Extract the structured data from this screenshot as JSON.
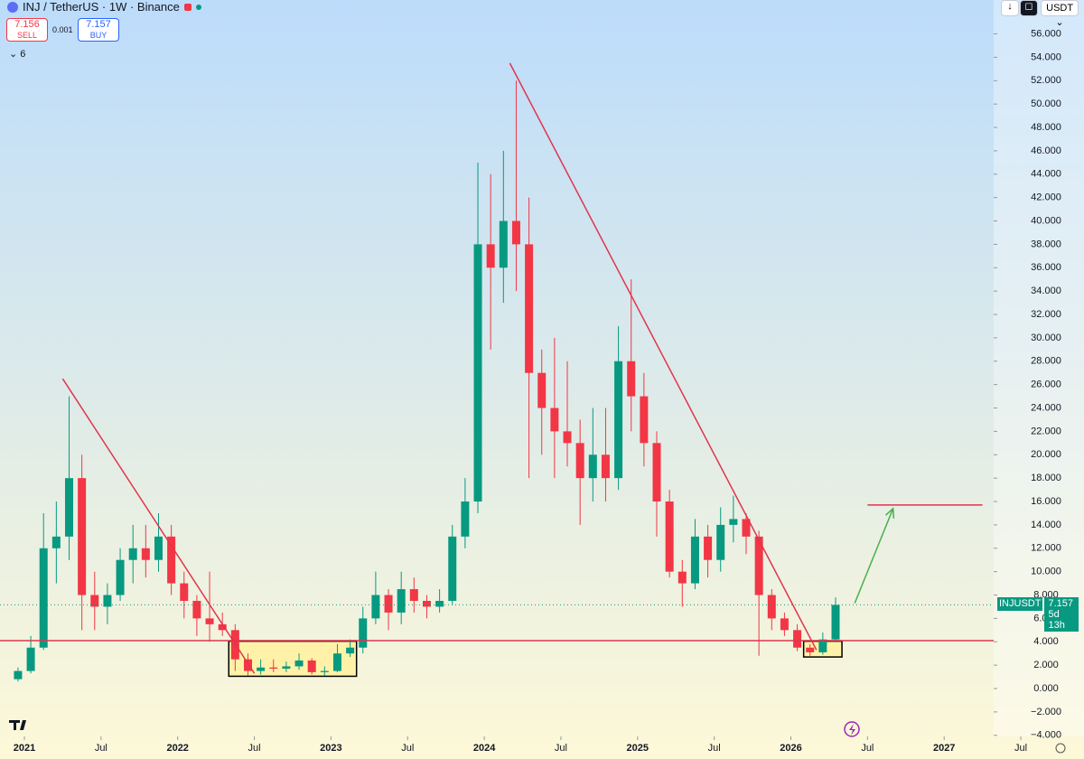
{
  "toolbar": {
    "symbol": "INJ / TetherUS · 1W · Binance",
    "sell_price": 7.156,
    "sell_label": "SELL",
    "spread": 0.001,
    "buy_price": 7.157,
    "buy_label": "BUY",
    "indicators": 6,
    "currency": "USDT"
  },
  "chart_data": {
    "type": "candlestick",
    "x": [
      "2020-12",
      "2021-01",
      "2021-02",
      "2021-03",
      "2021-04",
      "2021-05",
      "2021-06",
      "2021-07",
      "2021-08",
      "2021-09",
      "2021-10",
      "2021-11",
      "2021-12",
      "2022-01",
      "2022-02",
      "2022-03",
      "2022-04",
      "2022-05",
      "2022-06",
      "2022-07",
      "2022-08",
      "2022-09",
      "2022-10",
      "2022-11",
      "2022-12",
      "2023-01",
      "2023-02",
      "2023-03",
      "2023-04",
      "2023-05",
      "2023-06",
      "2023-07",
      "2023-08",
      "2023-09",
      "2023-10",
      "2023-11",
      "2023-12",
      "2024-01",
      "2024-02",
      "2024-03",
      "2024-04",
      "2024-05",
      "2024-06",
      "2024-07",
      "2024-08",
      "2024-09",
      "2024-10",
      "2024-11",
      "2024-12",
      "2025-01",
      "2025-02",
      "2025-03",
      "2025-04",
      "2025-05",
      "2025-06",
      "2025-07",
      "2025-08",
      "2025-09",
      "2025-10",
      "2025-11",
      "2025-12",
      "2026-01",
      "2026-02",
      "2026-03",
      "2026-04"
    ],
    "open": [
      0.8,
      1.5,
      3.5,
      12,
      13,
      18,
      8,
      7,
      8,
      11,
      12,
      11,
      13,
      9,
      7.5,
      6,
      5.5,
      5,
      2.5,
      1.5,
      1.8,
      1.7,
      1.9,
      2.4,
      1.4,
      1.5,
      3,
      3.5,
      6,
      8,
      6.5,
      8.5,
      7.5,
      7,
      7.5,
      13,
      16,
      38,
      36,
      40,
      38,
      27,
      24,
      22,
      21,
      18,
      20,
      18,
      28,
      25,
      21,
      16,
      10,
      9,
      13,
      11,
      14,
      14.5,
      13,
      8,
      6,
      5,
      3.5,
      3.1,
      4.2
    ],
    "high": [
      1.8,
      4.5,
      15,
      16,
      25,
      20,
      10,
      9,
      12,
      14,
      14,
      15,
      14,
      10,
      8,
      10,
      6.5,
      5.5,
      3,
      2.5,
      2.5,
      2.3,
      3,
      2.6,
      1.9,
      3.8,
      4.2,
      7,
      10,
      8.5,
      10,
      9.5,
      8,
      8.5,
      14,
      18,
      45,
      44,
      46,
      52,
      42,
      29,
      30,
      28,
      23,
      24,
      24,
      31,
      35,
      27,
      22,
      17,
      11,
      14.5,
      14,
      15.5,
      16.5,
      15,
      13.5,
      8.5,
      6.5,
      5.5,
      3.8,
      4.8,
      7.8
    ],
    "low": [
      0.6,
      1.3,
      3.3,
      9,
      11,
      5,
      5,
      5.5,
      7.5,
      9,
      9.5,
      10,
      8,
      6,
      4.5,
      4,
      4.5,
      1.5,
      1.1,
      1.2,
      1.4,
      1.4,
      1.6,
      1.2,
      1.1,
      1.4,
      2.7,
      3,
      5.5,
      5,
      5.5,
      6.5,
      6,
      6.5,
      7.2,
      12,
      15,
      29,
      33,
      34,
      18,
      20,
      18,
      19,
      14,
      16,
      16,
      17,
      22,
      19,
      13,
      9.5,
      7,
      8.5,
      9.5,
      10,
      12.5,
      11.5,
      2.8,
      5,
      4.5,
      3.2,
      2.8,
      2.9,
      4.1
    ],
    "close": [
      1.5,
      3.5,
      12,
      13,
      18,
      8,
      7,
      8,
      11,
      12,
      11,
      13,
      9,
      7.5,
      6,
      5.5,
      5,
      2.5,
      1.5,
      1.8,
      1.7,
      1.9,
      2.4,
      1.4,
      1.5,
      3,
      3.5,
      6,
      8,
      6.5,
      8.5,
      7.5,
      7,
      7.5,
      13,
      16,
      38,
      36,
      40,
      38,
      27,
      24,
      22,
      21,
      18,
      20,
      18,
      28,
      25,
      21,
      16,
      10,
      9,
      13,
      11,
      14,
      14.5,
      13,
      8,
      6,
      5,
      3.5,
      3.1,
      4.2,
      7.157
    ],
    "colors": {
      "up": "#089981",
      "down": "#f23645",
      "drawing": "#e0354d",
      "box": "#fff2a8",
      "arrow": "#4caf50"
    },
    "ylim": [
      -5.1,
      58.9
    ],
    "yticks": [
      {
        "value": -4,
        "label": "−4.000"
      },
      {
        "value": -2,
        "label": "−2.000"
      },
      {
        "value": 0,
        "label": "0.000"
      },
      {
        "value": 2,
        "label": "2.000"
      },
      {
        "value": 4,
        "label": "4.000"
      },
      {
        "value": 6,
        "label": "6.000"
      },
      {
        "value": 8,
        "label": "8.000"
      },
      {
        "value": 10,
        "label": "10.000"
      },
      {
        "value": 12,
        "label": "12.000"
      },
      {
        "value": 14,
        "label": "14.000"
      },
      {
        "value": 16,
        "label": "16.000"
      },
      {
        "value": 18,
        "label": "18.000"
      },
      {
        "value": 20,
        "label": "20.000"
      },
      {
        "value": 22,
        "label": "22.000"
      },
      {
        "value": 24,
        "label": "24.000"
      },
      {
        "value": 26,
        "label": "26.000"
      },
      {
        "value": 28,
        "label": "28.000"
      },
      {
        "value": 30,
        "label": "30.000"
      },
      {
        "value": 32,
        "label": "32.000"
      },
      {
        "value": 34,
        "label": "34.000"
      },
      {
        "value": 36,
        "label": "36.000"
      },
      {
        "value": 38,
        "label": "38.000"
      },
      {
        "value": 40,
        "label": "40.000"
      },
      {
        "value": 42,
        "label": "42.000"
      },
      {
        "value": 44,
        "label": "44.000"
      },
      {
        "value": 46,
        "label": "46.000"
      },
      {
        "value": 48,
        "label": "48.000"
      },
      {
        "value": 50,
        "label": "50.000"
      },
      {
        "value": 52,
        "label": "52.000"
      },
      {
        "value": 54,
        "label": "54.000"
      },
      {
        "value": 56,
        "label": "56.000"
      }
    ],
    "xticks": [
      {
        "value": "2021-01",
        "label": "2021"
      },
      {
        "value": "2021-07",
        "label": "Jul"
      },
      {
        "value": "2022-01",
        "label": "2022"
      },
      {
        "value": "2022-07",
        "label": "Jul"
      },
      {
        "value": "2023-01",
        "label": "2023"
      },
      {
        "value": "2023-07",
        "label": "Jul"
      },
      {
        "value": "2024-01",
        "label": "2024"
      },
      {
        "value": "2024-07",
        "label": "Jul"
      },
      {
        "value": "2025-01",
        "label": "2025"
      },
      {
        "value": "2025-07",
        "label": "Jul"
      },
      {
        "value": "2026-01",
        "label": "2026"
      },
      {
        "value": "2026-07",
        "label": "Jul"
      },
      {
        "value": "2027-01",
        "label": "2027"
      },
      {
        "value": "2027-07",
        "label": "Jul"
      }
    ],
    "trend_lines": [
      {
        "x": [
          "2021-04",
          "2022-07"
        ],
        "y": [
          26.5,
          1.3
        ]
      },
      {
        "x": [
          "2024-03",
          "2026-03"
        ],
        "y": [
          53.5,
          3.3
        ]
      }
    ],
    "support": 4.1,
    "boxes": [
      {
        "x": [
          "2022-05",
          "2023-03"
        ],
        "y": [
          1.05,
          4.05
        ]
      },
      {
        "x": [
          "2026-02",
          "2026-05"
        ],
        "y": [
          2.7,
          4.05
        ]
      }
    ],
    "target": {
      "x": [
        "2026-07",
        "2027-04"
      ],
      "y": 15.7
    },
    "arrow": {
      "x": [
        "2026-06",
        "2026-09"
      ],
      "y": [
        7.3,
        15.4
      ]
    },
    "last_price": {
      "symbol": "INJUSDT",
      "value": 7.157,
      "countdown": "5d 13h"
    }
  }
}
